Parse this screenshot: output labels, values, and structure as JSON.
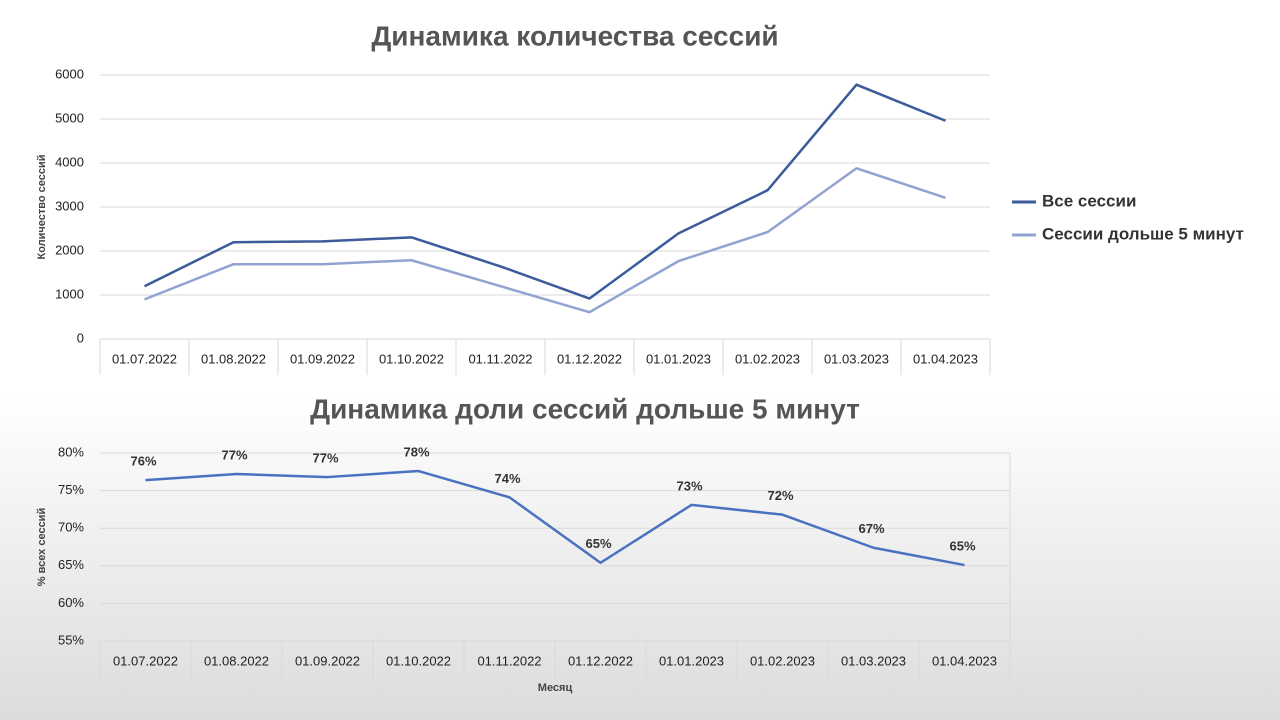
{
  "chart_data": [
    {
      "type": "line",
      "title": "Динамика количества сессий",
      "y_label": "Количество сессий",
      "categories": [
        "01.07.2022",
        "01.08.2022",
        "01.09.2022",
        "01.10.2022",
        "01.11.2022",
        "01.12.2022",
        "01.01.2023",
        "01.02.2023",
        "01.03.2023",
        "01.04.2023"
      ],
      "series": [
        {
          "name": "Все сессии",
          "color": "#3b5b9a",
          "values": [
            1200,
            2200,
            2220,
            2310,
            1650,
            920,
            2400,
            3380,
            5780,
            4960
          ]
        },
        {
          "name": "Сессии дольше 5 минут",
          "color": "#93a3d1",
          "values": [
            900,
            1700,
            1700,
            1790,
            1200,
            610,
            1770,
            2430,
            3880,
            3210
          ]
        }
      ],
      "ylim": [
        0,
        6000
      ],
      "yticks": [
        0,
        1000,
        2000,
        3000,
        4000,
        5000,
        6000
      ],
      "grid": true,
      "legend": "right"
    },
    {
      "type": "line",
      "title": "Динамика доли сессий дольше 5 минут",
      "y_label": "% всех сессий",
      "x_label": "Месяц",
      "categories": [
        "01.07.2022",
        "01.08.2022",
        "01.09.2022",
        "01.10.2022",
        "01.11.2022",
        "01.12.2022",
        "01.01.2023",
        "01.02.2023",
        "01.03.2023",
        "01.04.2023"
      ],
      "color": "#4a72c0",
      "values": [
        76.4,
        77.2,
        76.8,
        77.6,
        74.1,
        65.4,
        73.1,
        71.8,
        67.4,
        65.1
      ],
      "value_labels": [
        "76%",
        "77%",
        "77%",
        "78%",
        "74%",
        "65%",
        "73%",
        "72%",
        "67%",
        "65%"
      ],
      "ylim": [
        55,
        80
      ],
      "yticks": [
        {
          "value": 55,
          "label": "55%"
        },
        {
          "value": 60,
          "label": "60%"
        },
        {
          "value": 65,
          "label": "65%"
        },
        {
          "value": 70,
          "label": "70%"
        },
        {
          "value": 75,
          "label": "75%"
        },
        {
          "value": 80,
          "label": "80%"
        }
      ],
      "grid": true
    }
  ]
}
